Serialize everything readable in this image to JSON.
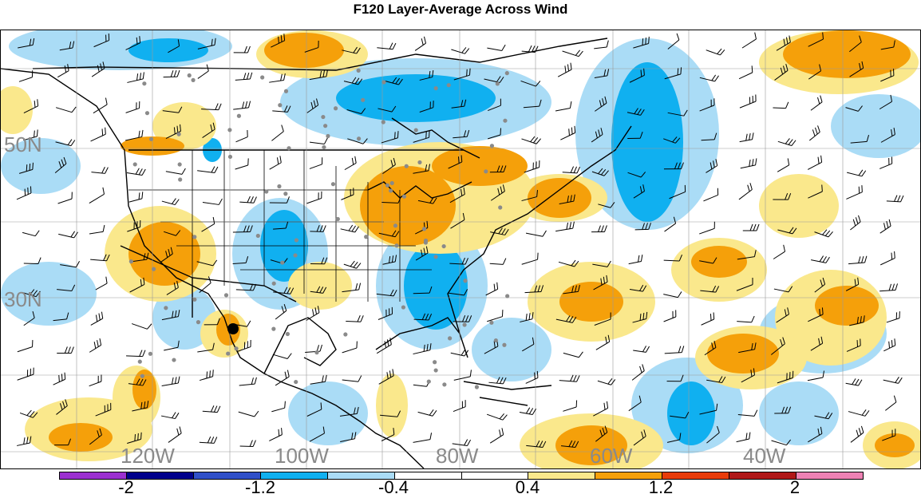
{
  "title": "F120 Layer-Average Across Wind",
  "lat_labels": [
    "50N",
    "30N"
  ],
  "lon_labels": [
    "120W",
    "100W",
    "80W",
    "60W",
    "40W"
  ],
  "colorbar": {
    "colors": [
      "#9b30d0",
      "#00008b",
      "#3050c8",
      "#10b0f0",
      "#aadcf6",
      "#ffffff",
      "#ffffff",
      "#fae88c",
      "#f5a00a",
      "#e83c0a",
      "#b01818",
      "#ee82b4"
    ],
    "labels": [
      "-2",
      "-1.2",
      "-0.4",
      "0.4",
      "1.2",
      "2"
    ]
  },
  "legend_colors": {
    "negative_dark": "#10b0f0",
    "negative_light": "#aadcf6",
    "positive_light": "#fae88c",
    "positive_dark": "#f5a00a"
  }
}
